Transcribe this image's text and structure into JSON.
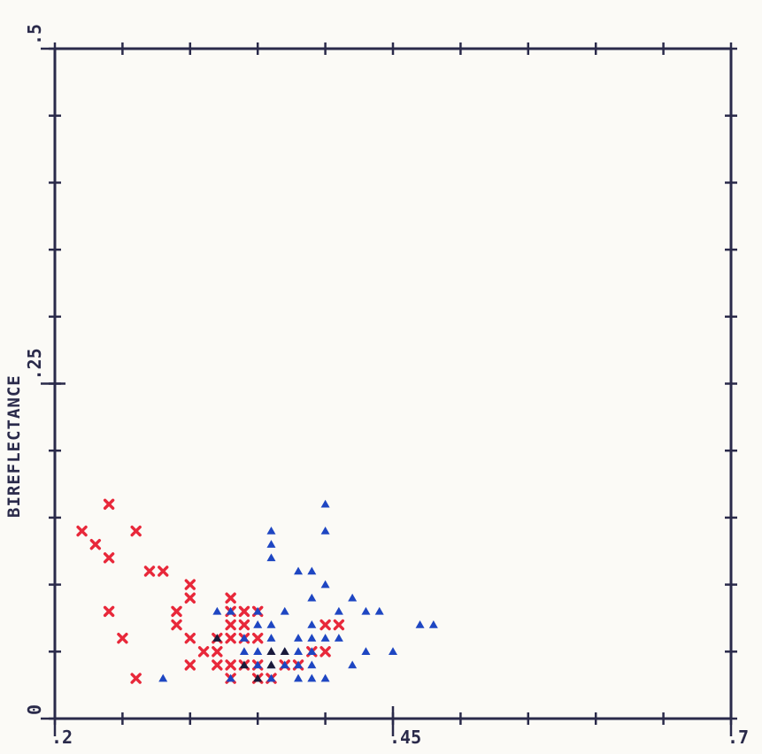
{
  "chart_data": {
    "type": "scatter",
    "title": "",
    "xlabel": "",
    "ylabel": "BIREFLECTANCE",
    "xlim": [
      0.2,
      0.7
    ],
    "ylim": [
      0,
      0.5
    ],
    "x_tick_labels": [
      ".2",
      ".45",
      ".7"
    ],
    "y_tick_labels": [
      "0",
      ".25",
      ".5"
    ],
    "x_tick_label_values": [
      0.2,
      0.45,
      0.7
    ],
    "y_tick_label_values": [
      0,
      0.25,
      0.5
    ],
    "x_minor_step": 0.05,
    "y_minor_step": 0.05,
    "grid": false,
    "legend": "none",
    "series": [
      {
        "marker": "x",
        "color": "#e8283a",
        "points": [
          [
            0.22,
            0.14
          ],
          [
            0.23,
            0.13
          ],
          [
            0.24,
            0.16
          ],
          [
            0.24,
            0.12
          ],
          [
            0.24,
            0.08
          ],
          [
            0.26,
            0.14
          ],
          [
            0.27,
            0.11
          ],
          [
            0.28,
            0.11
          ],
          [
            0.29,
            0.08
          ],
          [
            0.3,
            0.09
          ],
          [
            0.3,
            0.1
          ],
          [
            0.25,
            0.06
          ],
          [
            0.29,
            0.07
          ],
          [
            0.3,
            0.06
          ],
          [
            0.3,
            0.04
          ],
          [
            0.31,
            0.05
          ],
          [
            0.32,
            0.06
          ],
          [
            0.32,
            0.05
          ],
          [
            0.32,
            0.04
          ],
          [
            0.33,
            0.09
          ],
          [
            0.33,
            0.08
          ],
          [
            0.33,
            0.07
          ],
          [
            0.33,
            0.06
          ],
          [
            0.33,
            0.04
          ],
          [
            0.33,
            0.03
          ],
          [
            0.34,
            0.08
          ],
          [
            0.34,
            0.07
          ],
          [
            0.34,
            0.06
          ],
          [
            0.34,
            0.04
          ],
          [
            0.35,
            0.08
          ],
          [
            0.35,
            0.06
          ],
          [
            0.35,
            0.04
          ],
          [
            0.35,
            0.03
          ],
          [
            0.36,
            0.03
          ],
          [
            0.37,
            0.04
          ],
          [
            0.38,
            0.04
          ],
          [
            0.39,
            0.05
          ],
          [
            0.4,
            0.07
          ],
          [
            0.41,
            0.07
          ],
          [
            0.4,
            0.05
          ],
          [
            0.26,
            0.03
          ]
        ]
      },
      {
        "marker": "triangle",
        "color": "#1e46c2",
        "points": [
          [
            0.28,
            0.03
          ],
          [
            0.32,
            0.08
          ],
          [
            0.33,
            0.08
          ],
          [
            0.34,
            0.06
          ],
          [
            0.35,
            0.08
          ],
          [
            0.35,
            0.04
          ],
          [
            0.36,
            0.12
          ],
          [
            0.36,
            0.13
          ],
          [
            0.36,
            0.14
          ],
          [
            0.36,
            0.06
          ],
          [
            0.36,
            0.05
          ],
          [
            0.36,
            0.04
          ],
          [
            0.36,
            0.03
          ],
          [
            0.37,
            0.08
          ],
          [
            0.37,
            0.04
          ],
          [
            0.38,
            0.11
          ],
          [
            0.38,
            0.06
          ],
          [
            0.38,
            0.05
          ],
          [
            0.38,
            0.04
          ],
          [
            0.38,
            0.03
          ],
          [
            0.39,
            0.11
          ],
          [
            0.39,
            0.09
          ],
          [
            0.39,
            0.07
          ],
          [
            0.39,
            0.06
          ],
          [
            0.39,
            0.04
          ],
          [
            0.39,
            0.03
          ],
          [
            0.4,
            0.16
          ],
          [
            0.4,
            0.14
          ],
          [
            0.4,
            0.1
          ],
          [
            0.4,
            0.06
          ],
          [
            0.4,
            0.03
          ],
          [
            0.41,
            0.08
          ],
          [
            0.41,
            0.06
          ],
          [
            0.42,
            0.09
          ],
          [
            0.42,
            0.04
          ],
          [
            0.43,
            0.05
          ],
          [
            0.43,
            0.08
          ],
          [
            0.44,
            0.08
          ],
          [
            0.45,
            0.05
          ],
          [
            0.47,
            0.07
          ],
          [
            0.48,
            0.07
          ],
          [
            0.34,
            0.05
          ],
          [
            0.35,
            0.05
          ],
          [
            0.37,
            0.05
          ],
          [
            0.39,
            0.05
          ],
          [
            0.33,
            0.03
          ],
          [
            0.36,
            0.07
          ],
          [
            0.35,
            0.07
          ]
        ]
      },
      {
        "marker": "triangle",
        "color": "#1a1a3a",
        "points": [
          [
            0.32,
            0.06
          ],
          [
            0.34,
            0.04
          ],
          [
            0.35,
            0.03
          ],
          [
            0.36,
            0.04
          ],
          [
            0.37,
            0.05
          ],
          [
            0.36,
            0.05
          ]
        ]
      }
    ]
  }
}
